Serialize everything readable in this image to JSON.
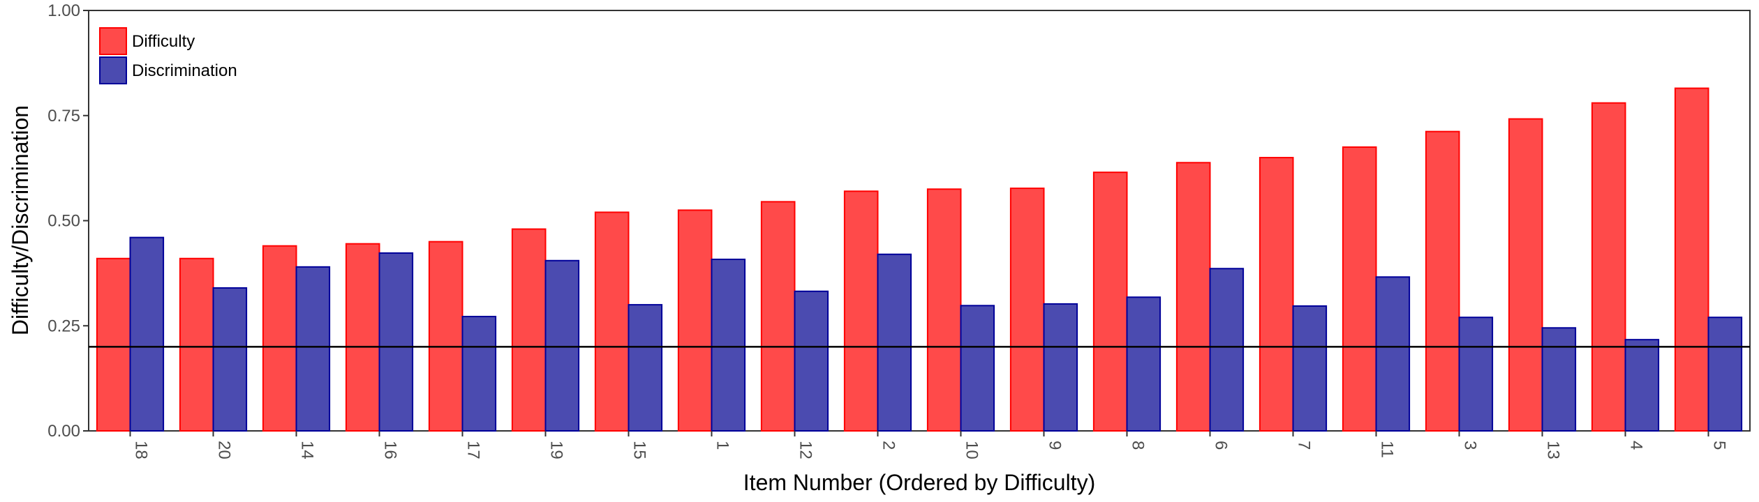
{
  "chart_data": {
    "type": "bar",
    "title": "",
    "xlabel": "Item Number (Ordered by Difficulty)",
    "ylabel": "Difficulty/Discrimination",
    "ylim": [
      0,
      1
    ],
    "yticks": [
      "0.00",
      "0.25",
      "0.50",
      "0.75",
      "1.00"
    ],
    "categories": [
      "18",
      "20",
      "14",
      "16",
      "17",
      "19",
      "15",
      "1",
      "12",
      "2",
      "10",
      "9",
      "8",
      "6",
      "7",
      "11",
      "3",
      "13",
      "4",
      "5"
    ],
    "series": [
      {
        "name": "Difficulty",
        "color": "#ff4a4a",
        "stroke": "#ff0000",
        "values": [
          0.41,
          0.41,
          0.44,
          0.445,
          0.45,
          0.48,
          0.52,
          0.525,
          0.545,
          0.57,
          0.575,
          0.577,
          0.615,
          0.638,
          0.65,
          0.675,
          0.712,
          0.742,
          0.78,
          0.815
        ]
      },
      {
        "name": "Discrimination",
        "color": "#4b4bb0",
        "stroke": "#000099",
        "values": [
          0.46,
          0.34,
          0.39,
          0.423,
          0.272,
          0.405,
          0.3,
          0.408,
          0.332,
          0.42,
          0.298,
          0.302,
          0.318,
          0.386,
          0.297,
          0.366,
          0.27,
          0.245,
          0.217,
          0.27
        ]
      }
    ],
    "reference_line": {
      "y": 0.2,
      "color": "#000000"
    },
    "legend_position": "top-left",
    "grid": false
  }
}
